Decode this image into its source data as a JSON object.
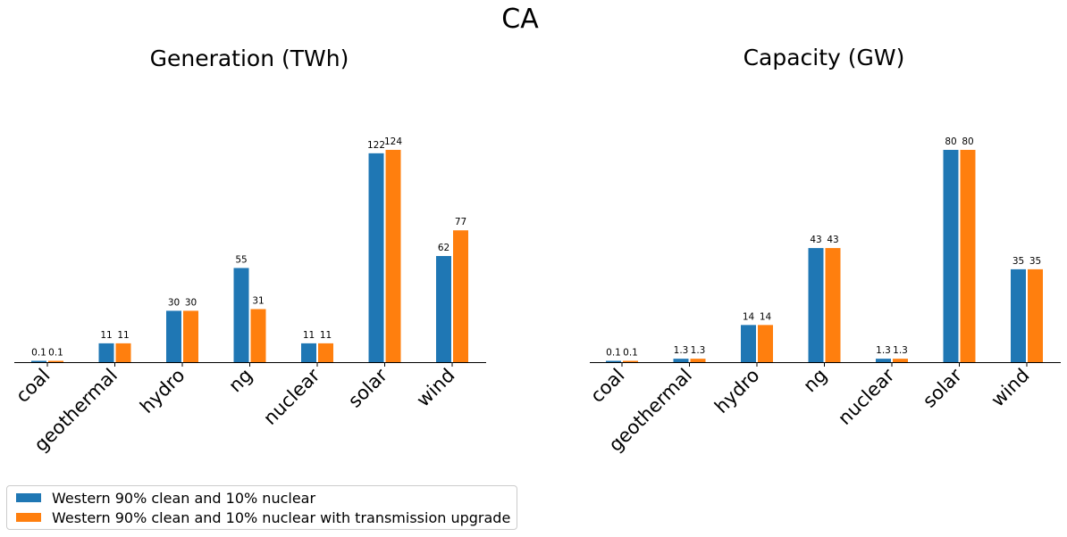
{
  "figure": {
    "suptitle": "CA"
  },
  "colors": {
    "series1": "#1f77b4",
    "series2": "#ff7f0e"
  },
  "legend": {
    "items": [
      {
        "label": "Western 90% clean and 10% nuclear",
        "color": "#1f77b4"
      },
      {
        "label": "Western 90% clean and 10% nuclear with transmission upgrade",
        "color": "#ff7f0e"
      }
    ]
  },
  "chart_data": [
    {
      "type": "bar",
      "title": "Generation (TWh)",
      "categories": [
        "coal",
        "geothermal",
        "hydro",
        "ng",
        "nuclear",
        "solar",
        "wind"
      ],
      "series": [
        {
          "name": "Western 90% clean and 10% nuclear",
          "values": [
            0.1,
            11,
            30,
            55,
            11,
            122,
            62
          ],
          "labels": [
            "0.1",
            "11",
            "30",
            "55",
            "11",
            "122",
            "62"
          ]
        },
        {
          "name": "Western 90% clean and 10% nuclear with transmission upgrade",
          "values": [
            0.1,
            11,
            30,
            31,
            11,
            124,
            77
          ],
          "labels": [
            "0.1",
            "11",
            "30",
            "31",
            "11",
            "124",
            "77"
          ]
        }
      ],
      "ylim": [
        0,
        124
      ],
      "grid": false,
      "legend": "bottom-left"
    },
    {
      "type": "bar",
      "title": "Capacity (GW)",
      "categories": [
        "coal",
        "geothermal",
        "hydro",
        "ng",
        "nuclear",
        "solar",
        "wind"
      ],
      "series": [
        {
          "name": "Western 90% clean and 10% nuclear",
          "values": [
            0.1,
            1.3,
            14,
            43,
            1.3,
            80,
            35
          ],
          "labels": [
            "0.1",
            "1.3",
            "14",
            "43",
            "1.3",
            "80",
            "35"
          ]
        },
        {
          "name": "Western 90% clean and 10% nuclear with transmission upgrade",
          "values": [
            0.1,
            1.3,
            14,
            43,
            1.3,
            80,
            35
          ],
          "labels": [
            "0.1",
            "1.3",
            "14",
            "43",
            "1.3",
            "80",
            "35"
          ]
        }
      ],
      "ylim": [
        0,
        80
      ],
      "grid": false,
      "legend": "bottom-left"
    }
  ]
}
